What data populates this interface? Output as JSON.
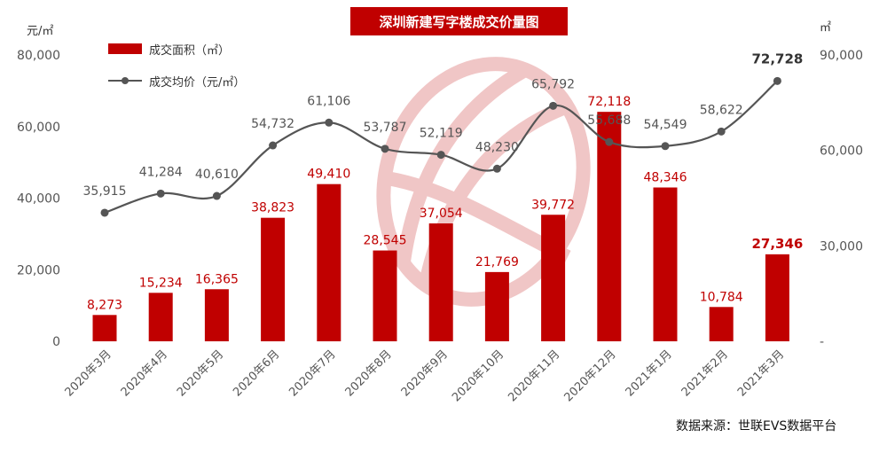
{
  "chart_data": {
    "type": "bar+line",
    "title": "深圳新建写字楼成交价量图",
    "categories": [
      "2020年3月",
      "2020年4月",
      "2020年5月",
      "2020年6月",
      "2020年7月",
      "2020年8月",
      "2020年9月",
      "2020年10月",
      "2020年11月",
      "2020年12月",
      "2021年1月",
      "2021年2月",
      "2021年3月"
    ],
    "series": [
      {
        "name": "成交面积（㎡）",
        "type": "bar",
        "axis": "right",
        "color": "#c00000",
        "values": [
          8273,
          15234,
          16365,
          38823,
          49410,
          28545,
          37054,
          21769,
          39772,
          72118,
          48346,
          10784,
          27346
        ],
        "labels": [
          "8,273",
          "15,234",
          "16,365",
          "38,823",
          "49,410",
          "28,545",
          "37,054",
          "21,769",
          "39,772",
          "72,118",
          "48,346",
          "10,784",
          "27,346"
        ]
      },
      {
        "name": "成交均价（元/㎡）",
        "type": "line",
        "axis": "left",
        "color": "#555555",
        "values": [
          35915,
          41284,
          40610,
          54732,
          61106,
          53787,
          52119,
          48230,
          65792,
          55688,
          54549,
          58622,
          72728
        ],
        "labels": [
          "35,915",
          "41,284",
          "40,610",
          "54,732",
          "61,106",
          "53,787",
          "52,119",
          "48,230",
          "65,792",
          "55,688",
          "54,549",
          "58,622",
          "72,728"
        ]
      }
    ],
    "left_axis": {
      "unit": "元/㎡",
      "ylim": [
        0,
        80000
      ],
      "ticks": [
        "0",
        "20,000",
        "40,000",
        "60,000",
        "80,000"
      ]
    },
    "right_axis": {
      "unit": "㎡",
      "ylim": [
        0,
        90000
      ],
      "ticks": [
        "-",
        "30,000",
        "60,000",
        "90,000"
      ]
    },
    "legend": {
      "position": "top-left"
    },
    "source": "数据来源：世联EVS数据平台"
  }
}
